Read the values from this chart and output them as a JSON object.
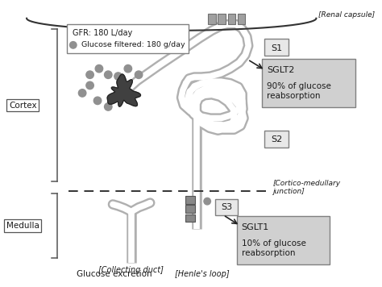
{
  "background_color": "#ffffff",
  "text_color": "#1a1a1a",
  "tubule_outer": "#b0b0b0",
  "tubule_inner": "#ffffff",
  "glom_fill": "#404040",
  "dot_color": "#909090",
  "box_fill_light": "#e8e8e8",
  "box_fill_mid": "#d0d0d0",
  "box_edge": "#808080",
  "bracket_color": "#555555",
  "dashed_color": "#333333",
  "arrow_color": "#222222",
  "renal_capsule_label": "[Renal capsule]",
  "cortex_label": "Cortex",
  "medulla_label": "Medulla",
  "collecting_duct_label": "[Collecting duct]",
  "henles_loop_label": "[Henle's loop]",
  "glucose_excretion_label": "Glucose excretion",
  "cortico_label": "[Cortico-medullary\njunction]",
  "gfr_text": "GFR: 180 L/day",
  "glucose_filtered_text": " Glucose filtered: 180 g/day",
  "s1_label": "S1",
  "s2_label": "S2",
  "s3_label": "S3",
  "sglt2_title": "SGLT2",
  "sglt2_body": "90% of glucose\nreabsorption",
  "sglt1_title": "SGLT1",
  "sglt1_body": "10% of glucose\nreabsorption"
}
